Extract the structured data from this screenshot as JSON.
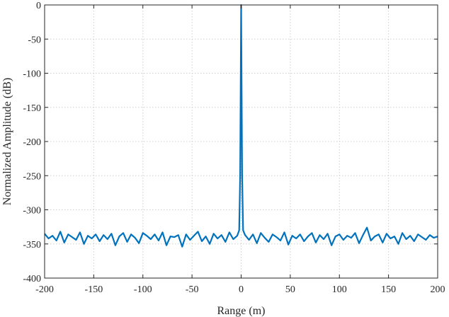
{
  "chart_data": {
    "type": "line",
    "title": "",
    "xlabel": "Range (m)",
    "ylabel": "Normalized Amplitude (dB)",
    "xlim": [
      -200,
      200
    ],
    "ylim": [
      -400,
      0
    ],
    "xticks": [
      -200,
      -150,
      -100,
      -50,
      0,
      50,
      100,
      150,
      200
    ],
    "yticks": [
      0,
      -50,
      -100,
      -150,
      -200,
      -250,
      -300,
      -350,
      -400
    ],
    "xtick_labels": [
      "-200",
      "-150",
      "-100",
      "-50",
      "0",
      "50",
      "100",
      "150",
      "200"
    ],
    "ytick_labels": [
      "0",
      "-50",
      "-100",
      "-150",
      "-200",
      "-250",
      "-300",
      "-350",
      "-400"
    ],
    "grid": true,
    "legend": "none",
    "series": [
      {
        "color": "#0072BD",
        "x": [
          -200,
          -196,
          -192,
          -188,
          -184,
          -180,
          -176,
          -172,
          -168,
          -164,
          -160,
          -156,
          -152,
          -148,
          -144,
          -140,
          -136,
          -132,
          -128,
          -124,
          -120,
          -116,
          -112,
          -108,
          -104,
          -100,
          -96,
          -92,
          -88,
          -84,
          -80,
          -76,
          -72,
          -68,
          -64,
          -60,
          -56,
          -52,
          -48,
          -44,
          -40,
          -36,
          -32,
          -28,
          -24,
          -20,
          -16,
          -12,
          -8,
          -4,
          -2,
          -1,
          0,
          1,
          2,
          4,
          8,
          12,
          16,
          20,
          24,
          28,
          32,
          36,
          40,
          44,
          48,
          52,
          56,
          60,
          64,
          68,
          72,
          76,
          80,
          84,
          88,
          92,
          96,
          100,
          104,
          108,
          112,
          116,
          120,
          124,
          128,
          132,
          136,
          140,
          144,
          148,
          152,
          156,
          160,
          164,
          168,
          172,
          176,
          180,
          184,
          188,
          192,
          196,
          200
        ],
        "y": [
          -335,
          -342,
          -338,
          -345,
          -332,
          -348,
          -336,
          -340,
          -344,
          -333,
          -350,
          -338,
          -342,
          -336,
          -346,
          -337,
          -343,
          -335,
          -352,
          -339,
          -334,
          -347,
          -336,
          -341,
          -349,
          -334,
          -338,
          -343,
          -336,
          -345,
          -333,
          -352,
          -339,
          -340,
          -337,
          -354,
          -336,
          -344,
          -338,
          -332,
          -346,
          -339,
          -350,
          -335,
          -342,
          -337,
          -347,
          -333,
          -343,
          -338,
          -330,
          -250,
          0,
          -250,
          -330,
          -337,
          -344,
          -336,
          -349,
          -334,
          -341,
          -347,
          -336,
          -340,
          -345,
          -333,
          -351,
          -338,
          -342,
          -336,
          -346,
          -339,
          -334,
          -348,
          -337,
          -343,
          -335,
          -352,
          -339,
          -336,
          -344,
          -338,
          -341,
          -334,
          -349,
          -337,
          -326,
          -345,
          -339,
          -336,
          -348,
          -335,
          -342,
          -339,
          -350,
          -334,
          -343,
          -338,
          -346,
          -336,
          -340,
          -344,
          -337,
          -341,
          -339
        ]
      }
    ]
  }
}
